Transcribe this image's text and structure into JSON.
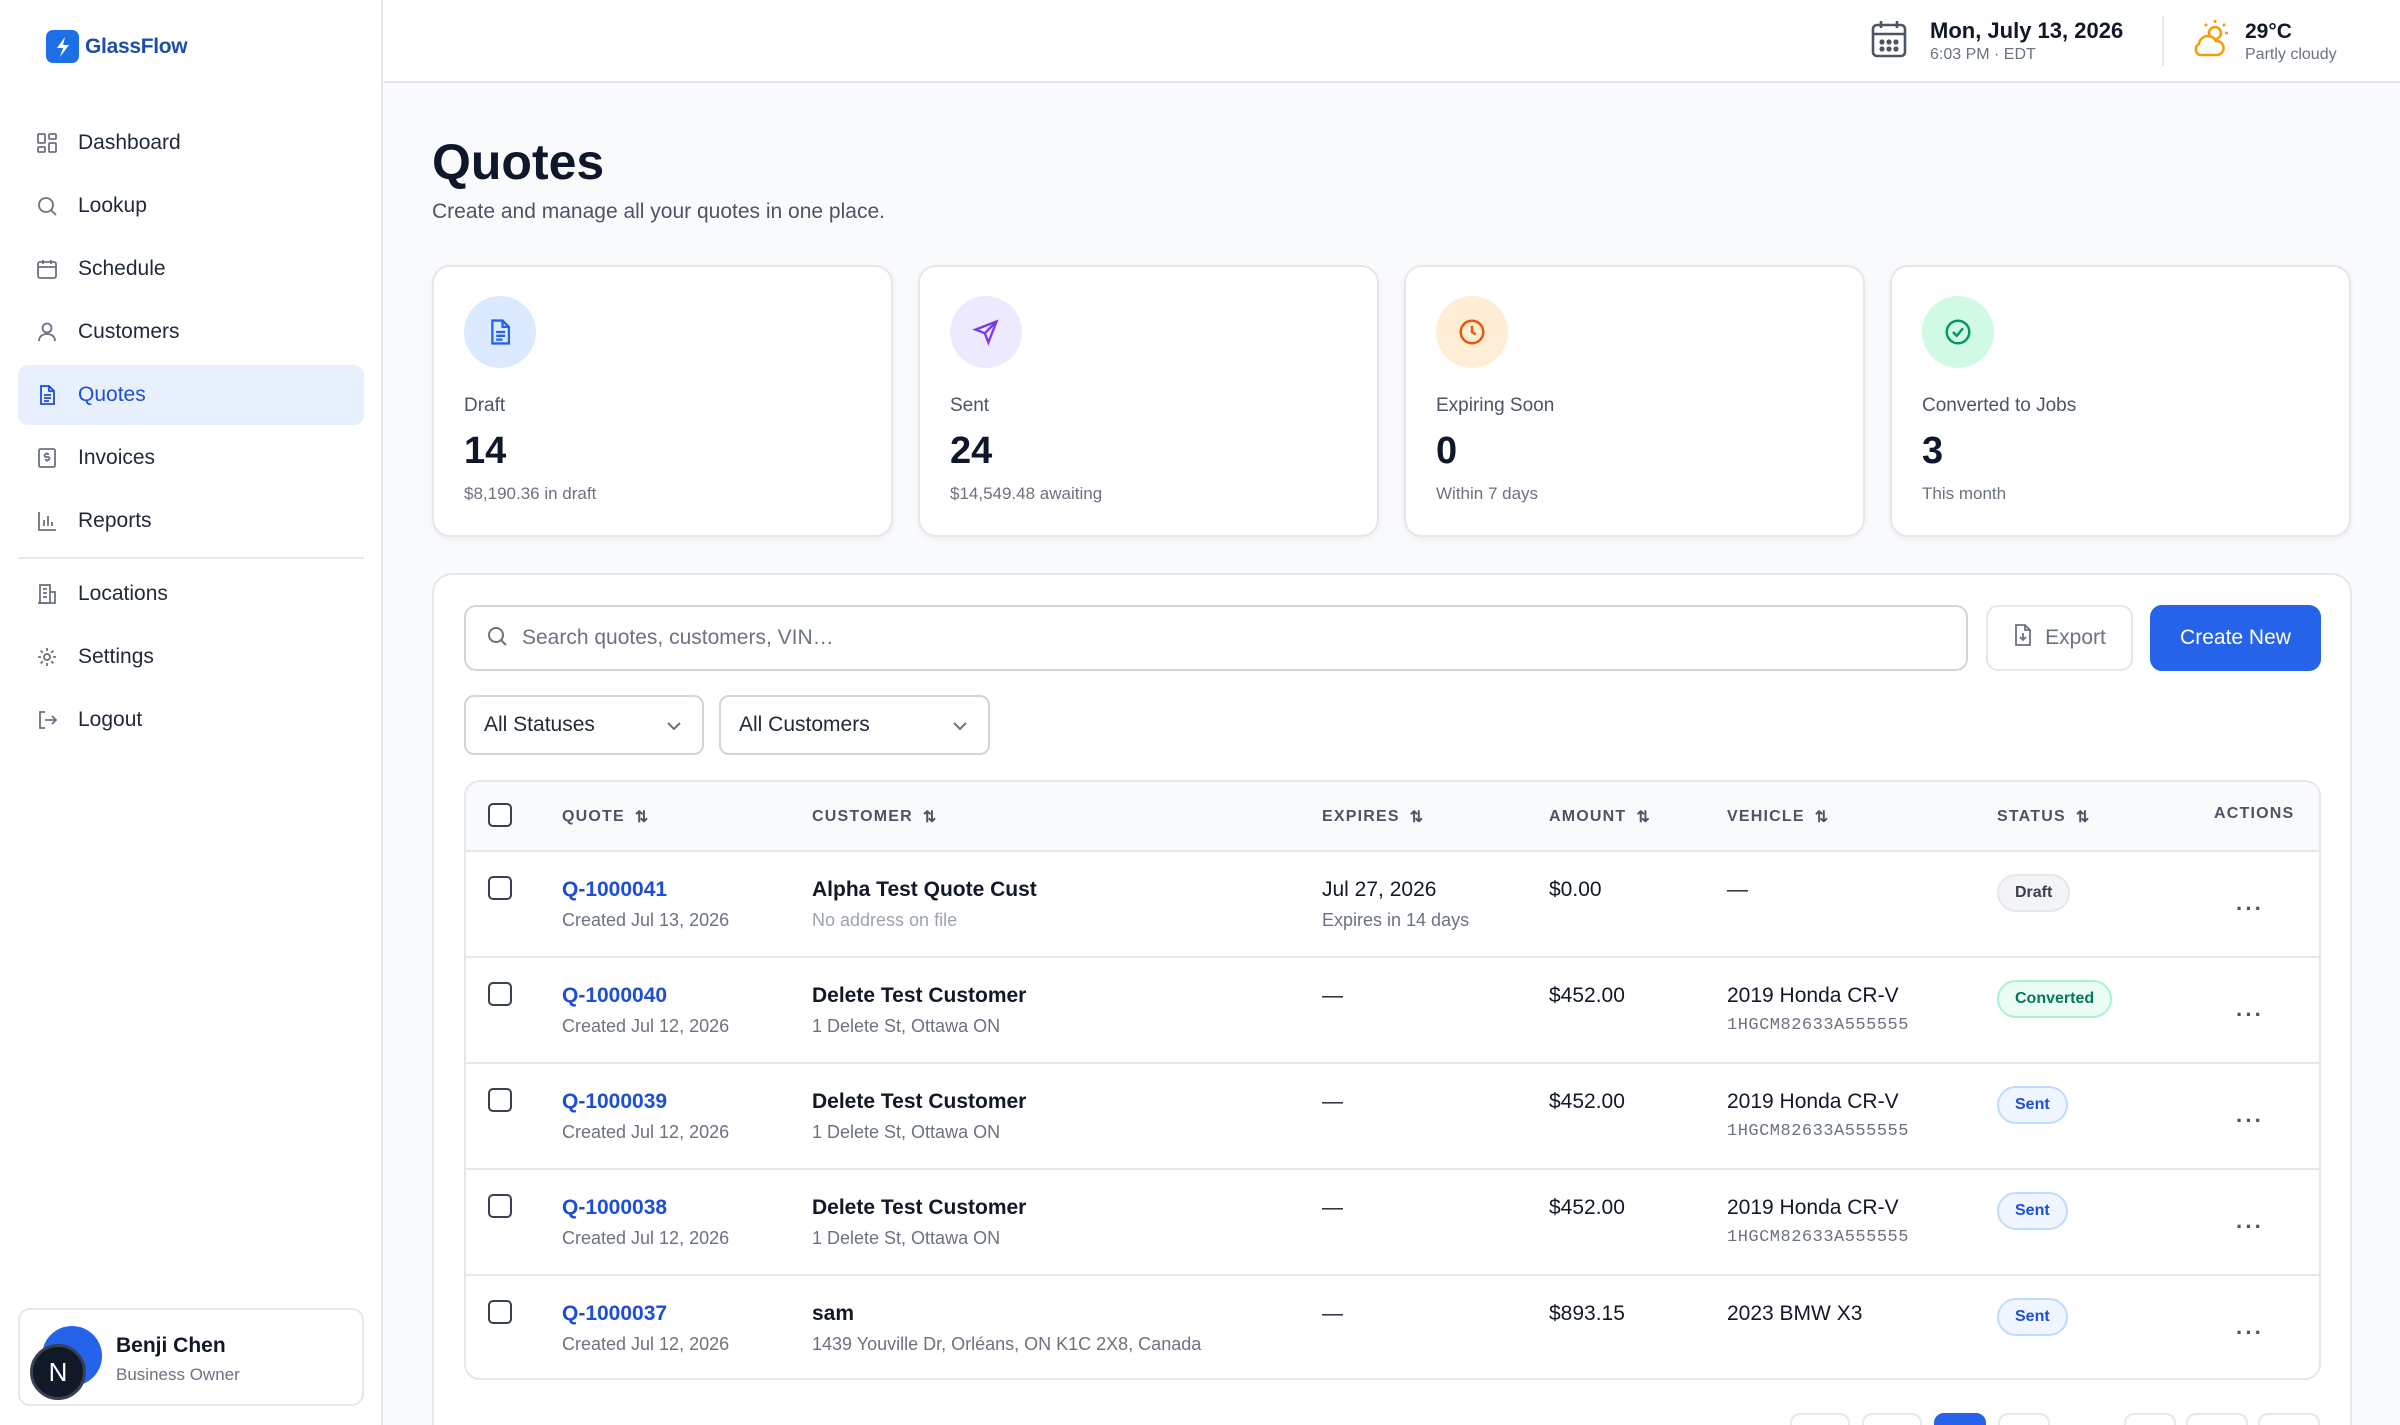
{
  "app": {
    "name": "GlassFlow"
  },
  "sidebar": {
    "items": [
      {
        "label": "Dashboard",
        "icon": "dashboard-icon"
      },
      {
        "label": "Lookup",
        "icon": "search-icon"
      },
      {
        "label": "Schedule",
        "icon": "calendar-icon"
      },
      {
        "label": "Customers",
        "icon": "user-icon"
      },
      {
        "label": "Quotes",
        "icon": "document-icon",
        "active": true
      },
      {
        "label": "Invoices",
        "icon": "invoice-icon"
      },
      {
        "label": "Reports",
        "icon": "bar-chart-icon"
      }
    ],
    "secondary_items": [
      {
        "label": "Locations",
        "icon": "building-icon"
      },
      {
        "label": "Settings",
        "icon": "gear-icon"
      },
      {
        "label": "Logout",
        "icon": "logout-icon"
      }
    ],
    "user": {
      "name": "Benji Chen",
      "role": "Business Owner",
      "initial": "N"
    }
  },
  "topbar": {
    "date": "Mon, July 13, 2026",
    "time": "6:03 PM · EDT",
    "temperature": "29°C",
    "condition": "Partly cloudy"
  },
  "header": {
    "title": "Quotes",
    "subtitle": "Create and manage all your quotes in one place."
  },
  "stats": [
    {
      "label": "Draft",
      "value": "14",
      "note": "$8,190.36 in draft",
      "icon": "document-icon",
      "color": "#2563eb",
      "bg": "#dbeafe"
    },
    {
      "label": "Sent",
      "value": "24",
      "note": "$14,549.48 awaiting",
      "icon": "send-icon",
      "color": "#7c3aed",
      "bg": "#ede9fe"
    },
    {
      "label": "Expiring Soon",
      "value": "0",
      "note": "Within 7 days",
      "icon": "clock-icon",
      "color": "#ea580c",
      "bg": "#ffedd5"
    },
    {
      "label": "Converted to Jobs",
      "value": "3",
      "note": "This month",
      "icon": "check-circle-icon",
      "color": "#059669",
      "bg": "#d1fae5"
    }
  ],
  "toolbar": {
    "search_placeholder": "Search quotes, customers, VIN…",
    "export_label": "Export",
    "create_label": "Create New",
    "status_filter": "All Statuses",
    "customer_filter": "All Customers"
  },
  "table": {
    "columns": [
      "QUOTE",
      "CUSTOMER",
      "EXPIRES",
      "AMOUNT",
      "VEHICLE",
      "STATUS",
      "ACTIONS"
    ],
    "rows": [
      {
        "id": "Q-1000041",
        "created": "Created Jul 13, 2026",
        "customer": "Alpha Test Quote Cust",
        "address": "No address on file",
        "expires": "Jul 27, 2026",
        "expires_note": "Expires in 14 days",
        "amount": "$0.00",
        "vehicle": "—",
        "vin": "",
        "status": "Draft",
        "status_class": "draft"
      },
      {
        "id": "Q-1000040",
        "created": "Created Jul 12, 2026",
        "customer": "Delete Test Customer",
        "address": "1 Delete St, Ottawa ON",
        "expires": "—",
        "expires_note": "",
        "amount": "$452.00",
        "vehicle": "2019 Honda CR-V",
        "vin": "1HGCM82633A555555",
        "status": "Converted",
        "status_class": "converted"
      },
      {
        "id": "Q-1000039",
        "created": "Created Jul 12, 2026",
        "customer": "Delete Test Customer",
        "address": "1 Delete St, Ottawa ON",
        "expires": "—",
        "expires_note": "",
        "amount": "$452.00",
        "vehicle": "2019 Honda CR-V",
        "vin": "1HGCM82633A555555",
        "status": "Sent",
        "status_class": "sent"
      },
      {
        "id": "Q-1000038",
        "created": "Created Jul 12, 2026",
        "customer": "Delete Test Customer",
        "address": "1 Delete St, Ottawa ON",
        "expires": "—",
        "expires_note": "",
        "amount": "$452.00",
        "vehicle": "2019 Honda CR-V",
        "vin": "1HGCM82633A555555",
        "status": "Sent",
        "status_class": "sent"
      },
      {
        "id": "Q-1000037",
        "created": "Created Jul 12, 2026",
        "customer": "sam",
        "address": "1439 Youville Dr, Orléans, ON K1C 2X8, Canada",
        "expires": "—",
        "expires_note": "",
        "amount": "$893.15",
        "vehicle": "2023 BMW X3",
        "vin": "",
        "status": "Sent",
        "status_class": "sent"
      }
    ]
  }
}
